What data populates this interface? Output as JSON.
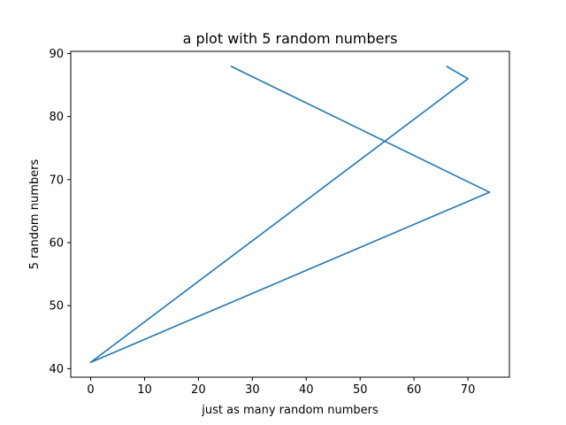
{
  "chart_data": {
    "type": "line",
    "title": "a plot with 5 random numbers",
    "xlabel": "just as many random numbers",
    "ylabel": "5 random numbers",
    "xlim": [
      -3.7,
      77.7
    ],
    "ylim": [
      38.65,
      90.35
    ],
    "xticks": [
      0,
      10,
      20,
      30,
      40,
      50,
      60,
      70
    ],
    "yticks": [
      40,
      50,
      60,
      70,
      80,
      90
    ],
    "grid": false,
    "series": [
      {
        "x": [
          26,
          74,
          0,
          70,
          66
        ],
        "y": [
          88,
          68,
          41,
          86,
          88
        ],
        "color": "#1f77b4"
      }
    ]
  }
}
